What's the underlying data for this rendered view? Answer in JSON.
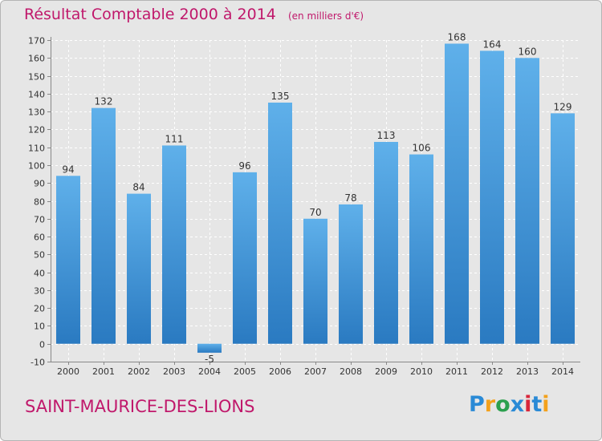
{
  "header": {
    "title": "Résultat Comptable 2000 à 2014",
    "unit": "(en milliers d'€)"
  },
  "footer": {
    "town": "SAINT-MAURICE-DES-LIONS",
    "logo": {
      "text": "Proxiti",
      "letters": [
        "P",
        "r",
        "o",
        "x",
        "i",
        "t",
        "i"
      ],
      "colors": [
        "#2a8ad6",
        "#f3a11c",
        "#2ca04e",
        "#2a8ad6",
        "#d8263b",
        "#2a8ad6",
        "#f3a11c"
      ]
    }
  },
  "colors": {
    "title": "#c0186b",
    "bar_light": "#5fb0ea",
    "bar_dark": "#2a7ac1",
    "background": "#e6e6e6",
    "grid": "#ffffff",
    "axis_text": "#333333"
  },
  "chart_data": {
    "type": "bar",
    "title": "Résultat Comptable 2000 à 2014",
    "subtitle": "(en milliers d'€)",
    "categories": [
      "2000",
      "2001",
      "2002",
      "2003",
      "2004",
      "2005",
      "2006",
      "2007",
      "2008",
      "2009",
      "2010",
      "2011",
      "2012",
      "2013",
      "2014"
    ],
    "values": [
      94,
      132,
      84,
      111,
      -5,
      96,
      135,
      70,
      78,
      113,
      106,
      168,
      164,
      160,
      129
    ],
    "data_labels": [
      "94",
      "132",
      "84",
      "111",
      "-5",
      "96",
      "135",
      "70",
      "78",
      "113",
      "106",
      "168",
      "164",
      "160",
      "129"
    ],
    "ylim": [
      -10,
      170
    ],
    "yticks": [
      -10,
      0,
      10,
      20,
      30,
      40,
      50,
      60,
      70,
      80,
      90,
      100,
      110,
      120,
      130,
      140,
      150,
      160,
      170
    ],
    "grid": true,
    "xlabel": "",
    "ylabel": ""
  }
}
